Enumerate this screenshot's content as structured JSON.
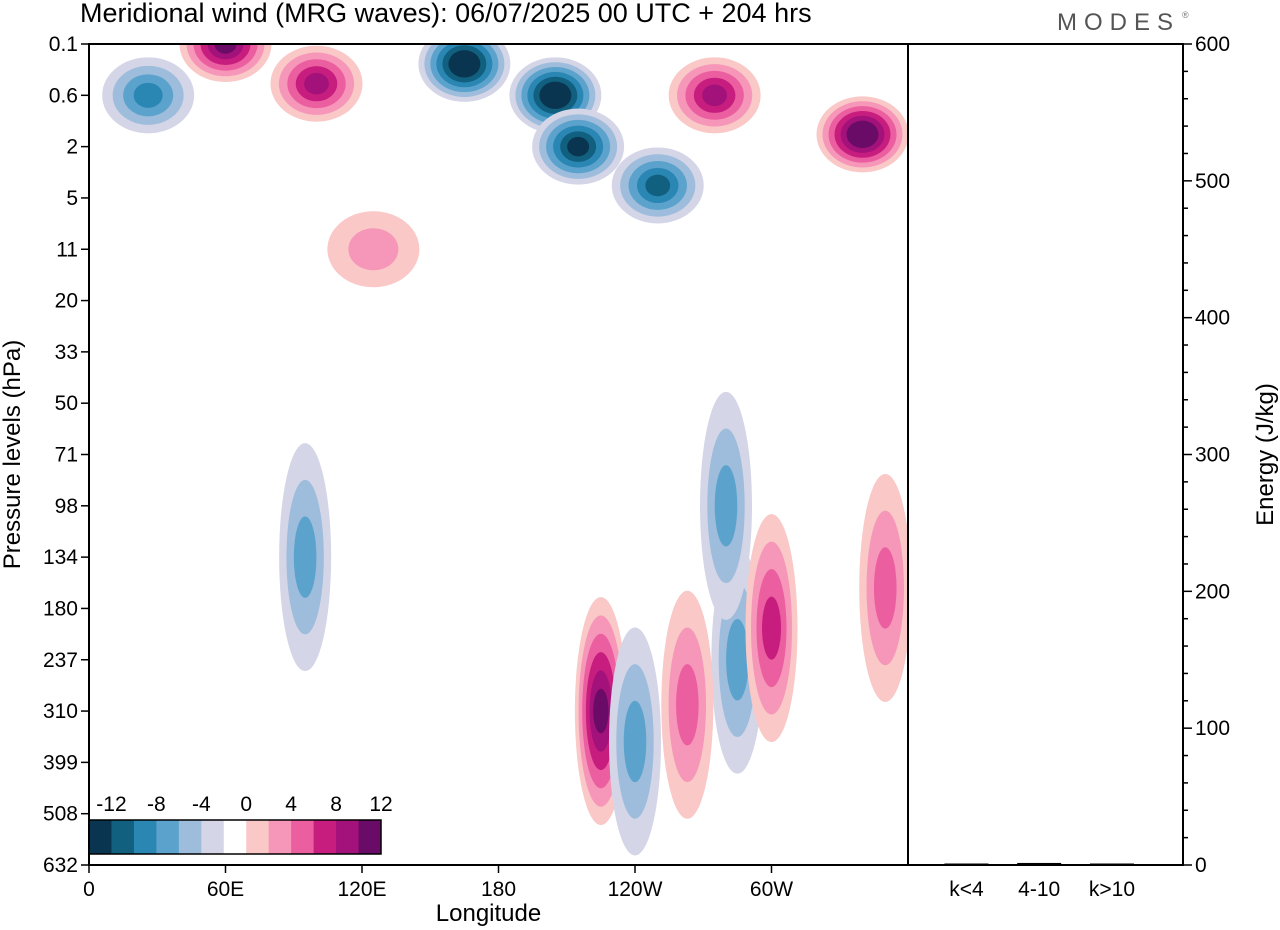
{
  "header": {
    "title": "Meridional wind (MRG waves):  06/07/2025  00 UTC  + 204 hrs",
    "logo_text": "MODES",
    "logo_mark": "®"
  },
  "chart_data": [
    {
      "type": "heatmap",
      "title": "Meridional wind (MRG waves):  06/07/2025  00 UTC  + 204 hrs",
      "xlabel": "Longitude",
      "ylabel": "Pressure levels (hPa)",
      "x_ticks": [
        "0",
        "60E",
        "120E",
        "180",
        "120W",
        "60W"
      ],
      "x_tick_degrees": [
        0,
        60,
        120,
        180,
        240,
        300
      ],
      "xlim": [
        0,
        360
      ],
      "y_ticks": [
        "0.1",
        "0.6",
        "2",
        "5",
        "11",
        "20",
        "33",
        "50",
        "71",
        "98",
        "134",
        "180",
        "237",
        "310",
        "399",
        "508",
        "632"
      ],
      "y_axis": "pressure, top to bottom, levels equally spaced as labelled",
      "colorbar": {
        "labels": [
          "-12",
          "-8",
          "-4",
          "0",
          "4",
          "8",
          "12"
        ],
        "levels": [
          -14,
          -12,
          -10,
          -8,
          -6,
          -4,
          -2,
          2,
          4,
          6,
          8,
          10,
          12,
          14
        ],
        "colors": [
          "#0a3550",
          "#12607f",
          "#2a86b3",
          "#5ba3cc",
          "#9ebcdb",
          "#d4d6e8",
          "#ffffff",
          "#f9c8c7",
          "#f696b8",
          "#eb5e9f",
          "#c71d7f",
          "#a3127a",
          "#6a0c67"
        ]
      },
      "features": [
        {
          "lon": 60,
          "level": 0.1,
          "value": 13,
          "sign": "positive"
        },
        {
          "lon": 100,
          "level": 0.4,
          "value": 11
        },
        {
          "lon": 26,
          "level": 0.6,
          "value": -8
        },
        {
          "lon": 165,
          "level": 0.2,
          "value": -14
        },
        {
          "lon": 205,
          "level": 0.6,
          "value": -14
        },
        {
          "lon": 215,
          "level": 2,
          "value": -12
        },
        {
          "lon": 250,
          "level": 4,
          "value": -11
        },
        {
          "lon": 275,
          "level": 0.6,
          "value": 10
        },
        {
          "lon": 340,
          "level": 1.5,
          "value": 14
        },
        {
          "lon": 125,
          "level": 11,
          "value": 5
        },
        {
          "lon": 95,
          "level": 134,
          "value": -6
        },
        {
          "lon": 225,
          "level": 310,
          "value": 12
        },
        {
          "lon": 240,
          "level": 360,
          "value": -7
        },
        {
          "lon": 285,
          "level": 237,
          "value": -7
        },
        {
          "lon": 300,
          "level": 200,
          "value": 8
        },
        {
          "lon": 263,
          "level": 300,
          "value": 6
        },
        {
          "lon": 280,
          "level": 98,
          "value": -6
        },
        {
          "lon": 350,
          "level": 160,
          "value": 6
        }
      ]
    },
    {
      "type": "bar",
      "ylabel": "Energy (J/kg)",
      "categories": [
        "k<4",
        "4-10",
        "k>10"
      ],
      "values": [
        0.5,
        1.5,
        0.3
      ],
      "ylim": [
        0,
        600
      ],
      "y_ticks": [
        "0",
        "100",
        "200",
        "300",
        "400",
        "500",
        "600"
      ]
    }
  ]
}
